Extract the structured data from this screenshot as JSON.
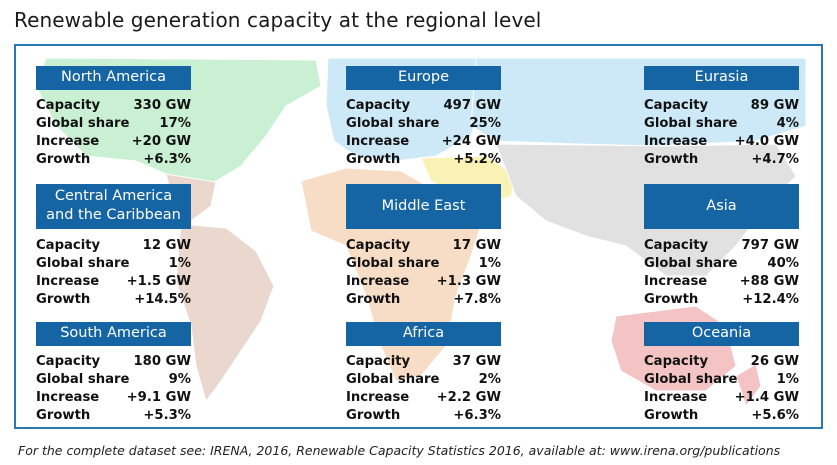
{
  "title": "Renewable generation capacity at the regional level",
  "footer": "For the complete dataset see: IRENA, 2016, Renewable Capacity Statistics 2016, available at: www.irena.org/publications",
  "colors": {
    "header_bg": "#1565a4",
    "frame_border": "#2a78b4",
    "north_america": "#c9f0d2",
    "south_central_america": "#ead7cd",
    "europe": "#cde9f7",
    "eurasia": "#cde9f7",
    "africa": "#f7dcc6",
    "middle_east": "#faf1b4",
    "asia": "#e1e1e1",
    "oceania": "#f4c4c4"
  },
  "chart_data": {
    "type": "table",
    "columns": [
      "Capacity",
      "Global share",
      "Increase",
      "Growth"
    ],
    "regions": [
      {
        "name": "North America",
        "capacity": "330 GW",
        "capacity_gw": 330,
        "global_share": "17%",
        "increase": "+20 GW",
        "growth": "+6.3%"
      },
      {
        "name": "Europe",
        "capacity": "497 GW",
        "capacity_gw": 497,
        "global_share": "25%",
        "increase": "+24 GW",
        "growth": "+5.2%"
      },
      {
        "name": "Eurasia",
        "capacity": "89 GW",
        "capacity_gw": 89,
        "global_share": "4%",
        "increase": "+4.0 GW",
        "growth": "+4.7%"
      },
      {
        "name": "Central America and the Caribbean",
        "name_lines": [
          "Central America",
          "and the Caribbean"
        ],
        "capacity": "12 GW",
        "capacity_gw": 12,
        "global_share": "1%",
        "increase": "+1.5 GW",
        "growth": "+14.5%"
      },
      {
        "name": "Middle East",
        "capacity": "17 GW",
        "capacity_gw": 17,
        "global_share": "1%",
        "increase": "+1.3 GW",
        "growth": "+7.8%"
      },
      {
        "name": "Asia",
        "capacity": "797 GW",
        "capacity_gw": 797,
        "global_share": "40%",
        "increase": "+88 GW",
        "growth": "+12.4%"
      },
      {
        "name": "South America",
        "capacity": "180 GW",
        "capacity_gw": 180,
        "global_share": "9%",
        "increase": "+9.1 GW",
        "growth": "+5.3%"
      },
      {
        "name": "Africa",
        "capacity": "37 GW",
        "capacity_gw": 37,
        "global_share": "2%",
        "increase": "+2.2 GW",
        "growth": "+6.3%"
      },
      {
        "name": "Oceania",
        "capacity": "26 GW",
        "capacity_gw": 26,
        "global_share": "1%",
        "increase": "+1.4 GW",
        "growth": "+5.6%"
      }
    ]
  }
}
